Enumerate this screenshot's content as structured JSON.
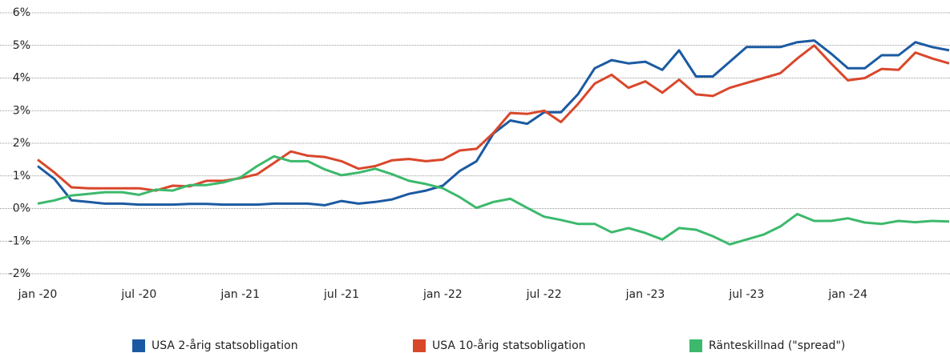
{
  "chart_data": {
    "type": "line",
    "categories": [
      "jan -20",
      null,
      null,
      null,
      null,
      null,
      "jul -20",
      null,
      null,
      null,
      null,
      null,
      "jan -21",
      null,
      null,
      null,
      null,
      null,
      "jul -21",
      null,
      null,
      null,
      null,
      null,
      "jan -22",
      null,
      null,
      null,
      null,
      null,
      "jul -22",
      null,
      null,
      null,
      null,
      null,
      "jan -23",
      null,
      null,
      null,
      null,
      null,
      "jul -23",
      null,
      null,
      null,
      null,
      null,
      "jan -24",
      null,
      null,
      null,
      null,
      null,
      null
    ],
    "series": [
      {
        "name": "USA 2-årig statsobligation",
        "color": "#1b5aa2",
        "values": [
          1.3,
          0.9,
          0.25,
          0.2,
          0.15,
          0.15,
          0.12,
          0.12,
          0.12,
          0.14,
          0.14,
          0.12,
          0.12,
          0.12,
          0.15,
          0.15,
          0.15,
          0.1,
          0.23,
          0.15,
          0.2,
          0.28,
          0.45,
          0.55,
          0.7,
          1.15,
          1.45,
          2.3,
          2.7,
          2.6,
          2.95,
          2.95,
          3.5,
          4.3,
          4.55,
          4.45,
          4.5,
          4.25,
          4.85,
          4.05,
          4.05,
          4.5,
          4.95,
          4.95,
          4.95,
          5.1,
          5.15,
          4.75,
          4.3,
          4.3,
          4.7,
          4.7,
          5.1,
          4.95,
          4.85
        ]
      },
      {
        "name": "USA 10-årig statsobligation",
        "color": "#d9472b",
        "values": [
          1.5,
          1.1,
          0.65,
          0.62,
          0.62,
          0.62,
          0.62,
          0.55,
          0.7,
          0.68,
          0.85,
          0.85,
          0.93,
          1.05,
          1.4,
          1.75,
          1.62,
          1.58,
          1.45,
          1.22,
          1.3,
          1.48,
          1.52,
          1.45,
          1.5,
          1.78,
          1.83,
          2.32,
          2.93,
          2.9,
          3.0,
          2.65,
          3.2,
          3.83,
          4.1,
          3.7,
          3.9,
          3.55,
          3.95,
          3.5,
          3.45,
          3.7,
          3.85,
          4.0,
          4.15,
          4.6,
          5.0,
          4.45,
          3.93,
          4.0,
          4.28,
          4.25,
          4.78,
          4.6,
          4.45
        ]
      },
      {
        "name": "Ränteskillnad (\"spread\")",
        "color": "#3cb96c",
        "values": [
          0.15,
          0.25,
          0.4,
          0.45,
          0.5,
          0.5,
          0.42,
          0.58,
          0.55,
          0.72,
          0.72,
          0.8,
          0.95,
          1.3,
          1.6,
          1.45,
          1.45,
          1.2,
          1.02,
          1.1,
          1.22,
          1.05,
          0.85,
          0.75,
          0.62,
          0.35,
          0.02,
          0.2,
          0.3,
          0.02,
          -0.25,
          -0.35,
          -0.47,
          -0.47,
          -0.73,
          -0.6,
          -0.75,
          -0.95,
          -0.6,
          -0.65,
          -0.85,
          -1.1,
          -0.95,
          -0.8,
          -0.55,
          -0.17,
          -0.38,
          -0.38,
          -0.3,
          -0.43,
          -0.47,
          -0.38,
          -0.42,
          -0.38,
          -0.4
        ]
      }
    ],
    "ylim": [
      -2,
      6
    ],
    "yticks": [
      {
        "value": -2,
        "label": "-2%"
      },
      {
        "value": -1,
        "label": "-1%"
      },
      {
        "value": 0,
        "label": "0%"
      },
      {
        "value": 1,
        "label": "1%"
      },
      {
        "value": 2,
        "label": "2%"
      },
      {
        "value": 3,
        "label": "3%"
      },
      {
        "value": 4,
        "label": "4%"
      },
      {
        "value": 5,
        "label": "5%"
      },
      {
        "value": 6,
        "label": "6%"
      }
    ],
    "grid": true
  }
}
